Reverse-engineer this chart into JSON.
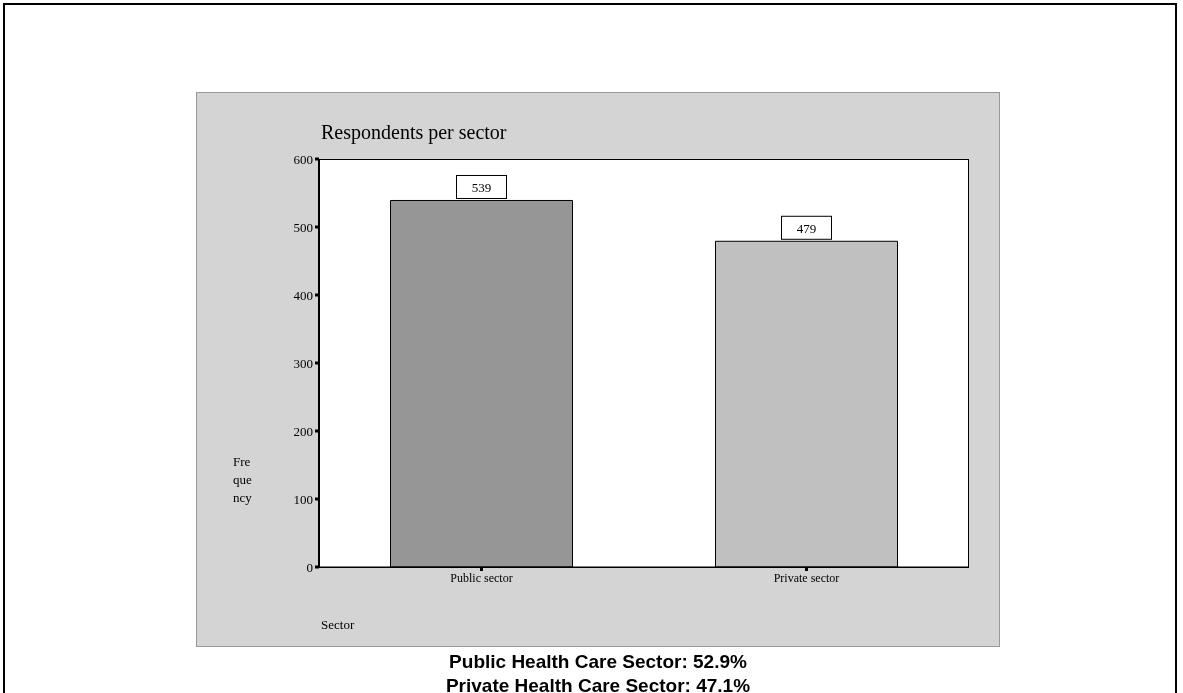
{
  "chart_data": {
    "type": "bar",
    "title": "Respondents per sector",
    "xlabel": "Sector",
    "ylabel": "Frequency",
    "categories": [
      "Public sector",
      "Private sector"
    ],
    "values": [
      539,
      479
    ],
    "colors": [
      "#969696",
      "#c0c0c0"
    ],
    "ylim": [
      0,
      600
    ],
    "yticks": [
      0,
      100,
      200,
      300,
      400,
      500,
      600
    ],
    "data_labels": true,
    "annotations": [
      "Public Health Care Sector:  52.9%",
      "Private Health Care Sector: 47.1%"
    ]
  }
}
